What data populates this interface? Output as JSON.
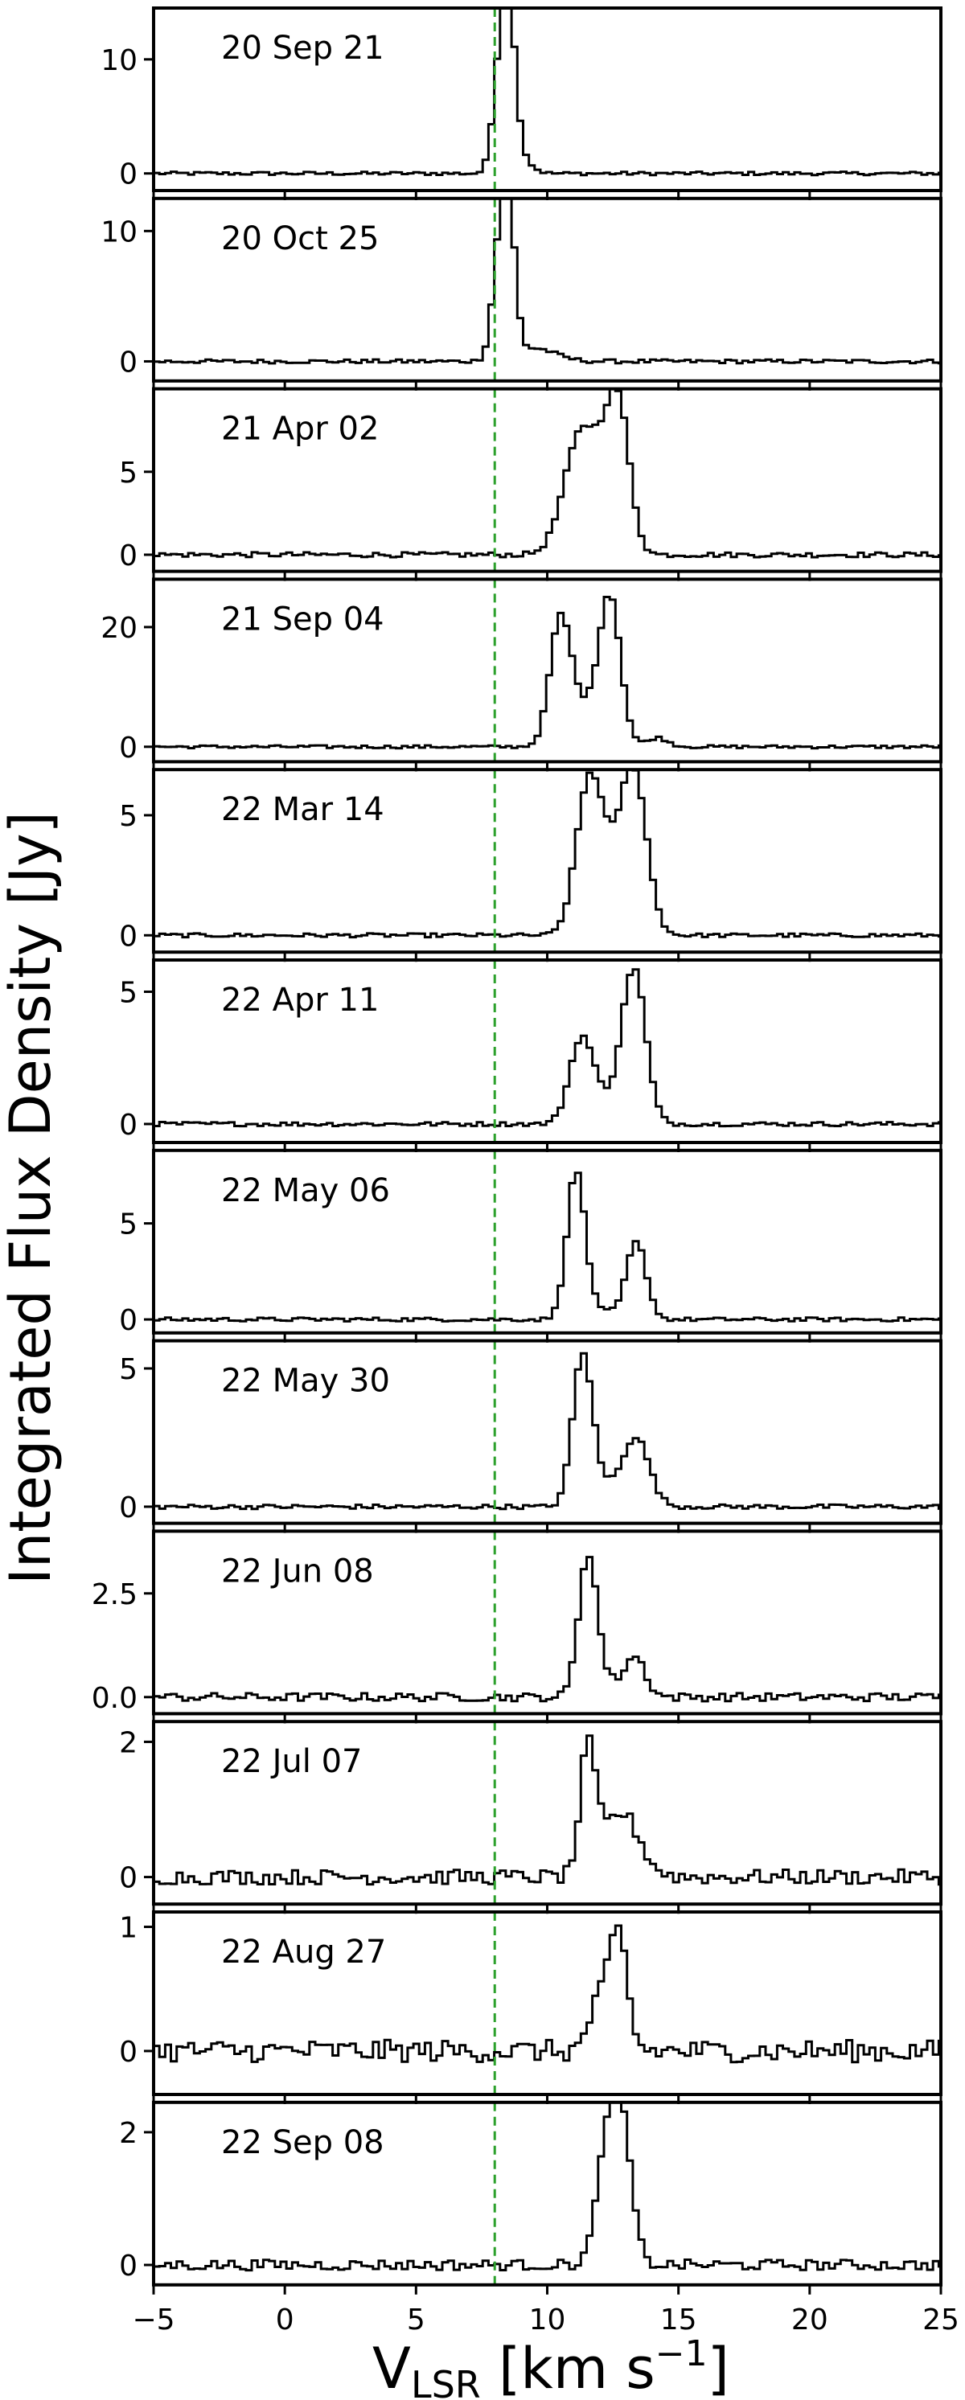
{
  "chart_data": {
    "type": "line",
    "style": "step",
    "xlim": [
      -5,
      25
    ],
    "x_ticks": [
      -5,
      0,
      5,
      10,
      15,
      20,
      25
    ],
    "xlabel": "V",
    "xlabel_sub": "LSR",
    "xlabel_units": " [km s",
    "xlabel_sup": "−1",
    "xlabel_end": "]",
    "ylabel": "Integrated Flux Density [Jy]",
    "reference_line": {
      "x": 8.0,
      "color": "#2ca02c",
      "style": "dashed"
    },
    "line_color": "#000000",
    "panels": [
      {
        "label": "20 Sep 21",
        "ylim": [
          -1.5,
          14.5
        ],
        "y_ticks": [
          0,
          10
        ],
        "y_tick_labels": [
          "0",
          "10"
        ],
        "noise": 0.15,
        "components": [
          [
            8.25,
            0.28,
            10.5
          ],
          [
            8.6,
            0.25,
            9.5
          ],
          [
            9.0,
            0.4,
            1.2
          ]
        ],
        "ticks_note": ""
      },
      {
        "label": "20 Oct 25",
        "ylim": [
          -1.5,
          12.5
        ],
        "y_ticks": [
          0,
          10
        ],
        "y_tick_labels": [
          "0",
          "10"
        ],
        "noise": 0.15,
        "components": [
          [
            8.2,
            0.28,
            8.0
          ],
          [
            8.55,
            0.25,
            9.5
          ],
          [
            9.5,
            0.8,
            1.0
          ]
        ]
      },
      {
        "label": "21 Apr 02",
        "ylim": [
          -1.0,
          10.0
        ],
        "y_ticks": [
          0,
          5
        ],
        "y_tick_labels": [
          "0",
          "5"
        ],
        "noise": 0.15,
        "components": [
          [
            11.3,
            0.65,
            7.2
          ],
          [
            12.7,
            0.45,
            8.5
          ],
          [
            12.1,
            0.5,
            1.5
          ]
        ]
      },
      {
        "label": "21 Sep 04",
        "ylim": [
          -2.5,
          28.0
        ],
        "y_ticks": [
          0,
          20
        ],
        "y_tick_labels": [
          "0",
          "20"
        ],
        "noise": 0.25,
        "components": [
          [
            10.5,
            0.4,
            20.0
          ],
          [
            12.4,
            0.4,
            23.0
          ],
          [
            11.5,
            0.7,
            6.0
          ],
          [
            14.2,
            0.4,
            1.5
          ]
        ]
      },
      {
        "label": "22 Mar 14",
        "ylim": [
          -0.7,
          6.9
        ],
        "y_ticks": [
          0,
          5
        ],
        "y_tick_labels": [
          "0",
          "5"
        ],
        "noise": 0.08,
        "components": [
          [
            11.6,
            0.5,
            5.8
          ],
          [
            13.3,
            0.5,
            6.3
          ],
          [
            12.4,
            0.7,
            1.8
          ]
        ]
      },
      {
        "label": "22 Apr 11",
        "ylim": [
          -0.7,
          6.2
        ],
        "y_ticks": [
          0,
          5
        ],
        "y_tick_labels": [
          "0",
          "5"
        ],
        "noise": 0.08,
        "components": [
          [
            11.3,
            0.45,
            3.1
          ],
          [
            13.3,
            0.45,
            5.8
          ],
          [
            12.2,
            0.6,
            0.7
          ]
        ]
      },
      {
        "label": "22 May 06",
        "ylim": [
          -0.7,
          8.8
        ],
        "y_ticks": [
          0,
          5
        ],
        "y_tick_labels": [
          "0",
          "5"
        ],
        "noise": 0.1,
        "components": [
          [
            11.1,
            0.35,
            7.6
          ],
          [
            13.4,
            0.38,
            4.0
          ],
          [
            12.0,
            0.6,
            0.4
          ]
        ]
      },
      {
        "label": "22 May 30",
        "ylim": [
          -0.6,
          6.0
        ],
        "y_ticks": [
          0,
          5
        ],
        "y_tick_labels": [
          "0",
          "5"
        ],
        "noise": 0.08,
        "components": [
          [
            11.35,
            0.38,
            5.4
          ],
          [
            13.4,
            0.5,
            2.4
          ],
          [
            12.3,
            0.6,
            0.6
          ]
        ]
      },
      {
        "label": "22 Jun 08",
        "ylim": [
          -0.4,
          4.0
        ],
        "y_ticks": [
          0.0,
          2.5
        ],
        "y_tick_labels": [
          "0.0",
          "2.5"
        ],
        "noise": 0.1,
        "components": [
          [
            11.55,
            0.35,
            3.4
          ],
          [
            13.35,
            0.4,
            0.95
          ],
          [
            12.3,
            0.5,
            0.3
          ]
        ]
      },
      {
        "label": "22 Jul 07",
        "ylim": [
          -0.4,
          2.3
        ],
        "y_ticks": [
          0,
          2
        ],
        "y_tick_labels": [
          "0",
          "2"
        ],
        "noise": 0.11,
        "components": [
          [
            11.55,
            0.3,
            1.8
          ],
          [
            12.8,
            0.7,
            0.95
          ]
        ]
      },
      {
        "label": "22 Aug 27",
        "ylim": [
          -0.35,
          1.12
        ],
        "y_ticks": [
          0,
          1
        ],
        "y_tick_labels": [
          "0",
          "1"
        ],
        "noise": 0.09,
        "components": [
          [
            12.7,
            0.35,
            0.95
          ],
          [
            11.9,
            0.35,
            0.35
          ]
        ]
      },
      {
        "label": "22 Sep 08",
        "ylim": [
          -0.3,
          2.45
        ],
        "y_ticks": [
          0,
          2
        ],
        "y_tick_labels": [
          "0",
          "2"
        ],
        "noise": 0.08,
        "components": [
          [
            12.4,
            0.45,
            1.9
          ],
          [
            12.85,
            0.4,
            1.4
          ]
        ]
      }
    ]
  }
}
